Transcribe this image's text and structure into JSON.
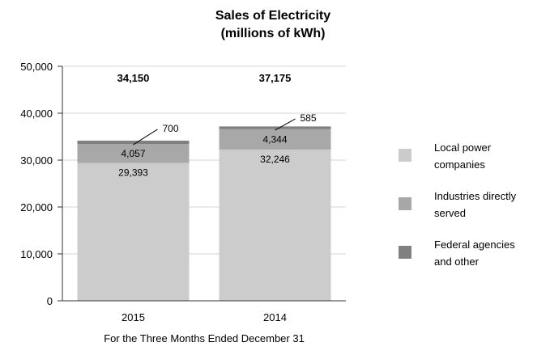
{
  "chart_data": {
    "type": "bar",
    "stacked": true,
    "title_lines": [
      "Sales of Electricity",
      "(millions of kWh)"
    ],
    "xlabel": "For the Three Months Ended December 31",
    "ylabel": "",
    "ylim": [
      0,
      50000
    ],
    "yticks": [
      "0",
      "10,000",
      "20,000",
      "30,000",
      "40,000",
      "50,000"
    ],
    "categories": [
      "2015",
      "2014"
    ],
    "series": [
      {
        "name": "Local power companies",
        "values": [
          29393,
          32246
        ],
        "labels": [
          "29,393",
          "32,246"
        ],
        "color": "#cccccc"
      },
      {
        "name": "Industries directly served",
        "values": [
          4057,
          4344
        ],
        "labels": [
          "4,057",
          "4,344"
        ],
        "color": "#a8a8a8"
      },
      {
        "name": "Federal agencies and other",
        "values": [
          700,
          585
        ],
        "labels": [
          "700",
          "585"
        ],
        "color": "#808080"
      }
    ],
    "totals": [
      "34,150",
      "37,175"
    ],
    "legend_lines": [
      [
        "Local power",
        "companies"
      ],
      [
        "Industries directly",
        "served"
      ],
      [
        "Federal agencies",
        "and other"
      ]
    ],
    "grid": true,
    "legend_position": "right"
  }
}
